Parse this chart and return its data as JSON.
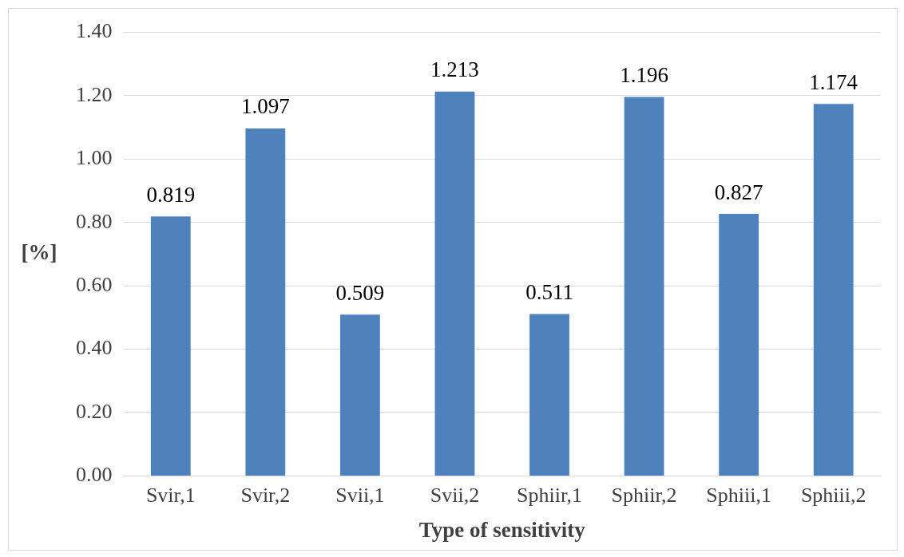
{
  "chart_data": {
    "type": "bar",
    "xlabel": "Type of sensitivity",
    "ylabel": "[%]",
    "categories": [
      "Svir,1",
      "Svir,2",
      "Svii,1",
      "Svii,2",
      "Sphiir,1",
      "Sphiir,2",
      "Sphiii,1",
      "Sphiii,2"
    ],
    "values": [
      0.819,
      1.097,
      0.509,
      1.213,
      0.511,
      1.196,
      0.827,
      1.174
    ],
    "color": "#4f81bd",
    "ylim": [
      0,
      1.4
    ],
    "yticks": [
      {
        "value": 0,
        "label": "0.00"
      },
      {
        "value": 0.2,
        "label": "0.20"
      },
      {
        "value": 0.4,
        "label": "0.40"
      },
      {
        "value": 0.6,
        "label": "0.60"
      },
      {
        "value": 0.8,
        "label": "0.80"
      },
      {
        "value": 1,
        "label": "1.00"
      },
      {
        "value": 1.2,
        "label": "1.20"
      },
      {
        "value": 1.4,
        "label": "1.40"
      }
    ],
    "grid": "y",
    "data_labels": true
  }
}
